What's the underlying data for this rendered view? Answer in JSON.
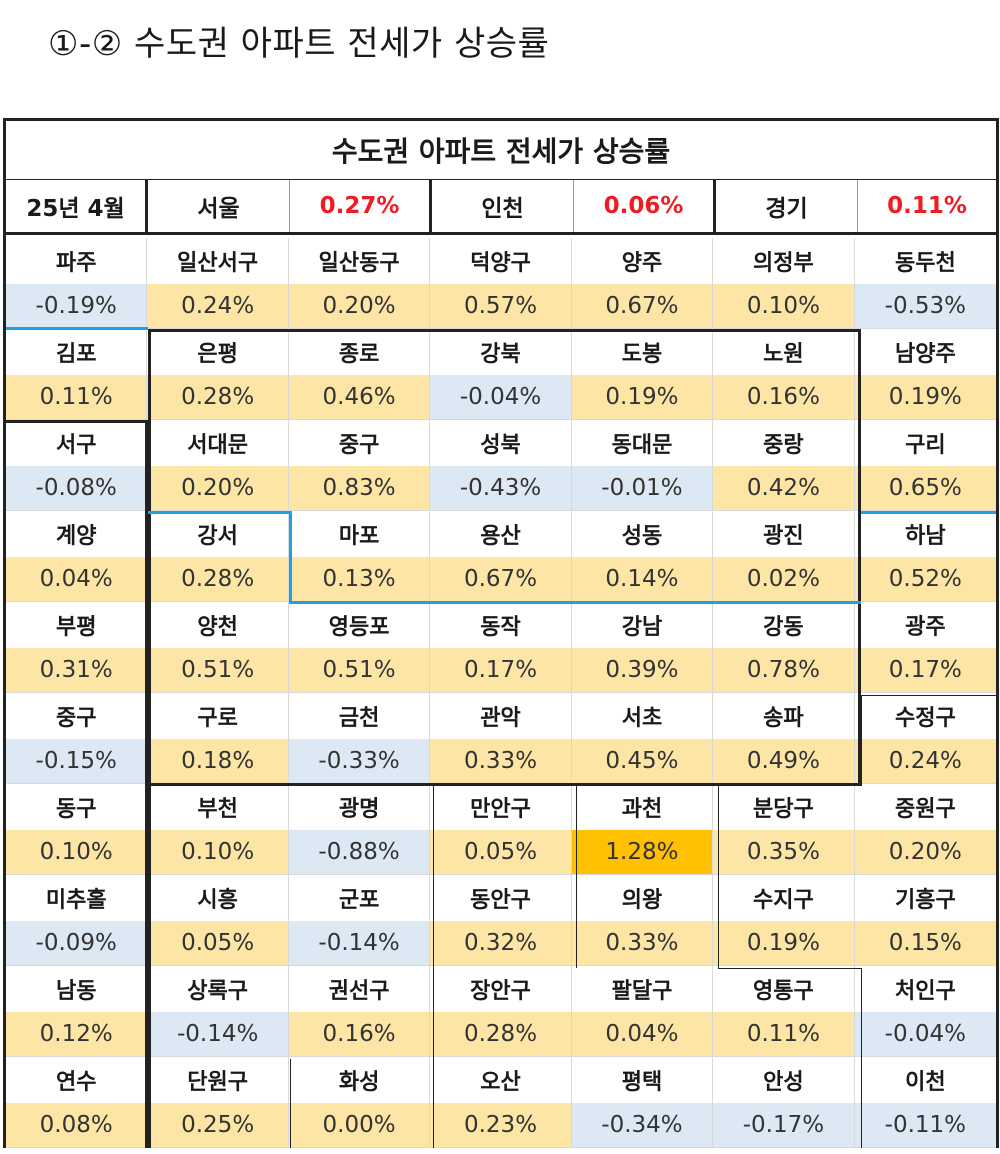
{
  "page": {
    "title": "①-② 수도권 아파트 전세가 상승률"
  },
  "table": {
    "title": "수도권 아파트 전세가 상승률",
    "summary": [
      {
        "text": "25년 4월",
        "kind": "label"
      },
      {
        "text": "서울",
        "kind": "label"
      },
      {
        "text": "0.27%",
        "kind": "value"
      },
      {
        "text": "인천",
        "kind": "label"
      },
      {
        "text": "0.06%",
        "kind": "value"
      },
      {
        "text": "경기",
        "kind": "label"
      },
      {
        "text": "0.11%",
        "kind": "value"
      }
    ],
    "rows": [
      [
        {
          "name": "파주",
          "value": "-0.19%"
        },
        {
          "name": "일산서구",
          "value": "0.24%"
        },
        {
          "name": "일산동구",
          "value": "0.20%"
        },
        {
          "name": "덕양구",
          "value": "0.57%"
        },
        {
          "name": "양주",
          "value": "0.67%"
        },
        {
          "name": "의정부",
          "value": "0.10%"
        },
        {
          "name": "동두천",
          "value": "-0.53%"
        }
      ],
      [
        {
          "name": "김포",
          "value": "0.11%"
        },
        {
          "name": "은평",
          "value": "0.28%"
        },
        {
          "name": "종로",
          "value": "0.46%"
        },
        {
          "name": "강북",
          "value": "-0.04%"
        },
        {
          "name": "도봉",
          "value": "0.19%"
        },
        {
          "name": "노원",
          "value": "0.16%"
        },
        {
          "name": "남양주",
          "value": "0.19%"
        }
      ],
      [
        {
          "name": "서구",
          "value": "-0.08%"
        },
        {
          "name": "서대문",
          "value": "0.20%"
        },
        {
          "name": "중구",
          "value": "0.83%"
        },
        {
          "name": "성북",
          "value": "-0.43%"
        },
        {
          "name": "동대문",
          "value": "-0.01%"
        },
        {
          "name": "중랑",
          "value": "0.42%"
        },
        {
          "name": "구리",
          "value": "0.65%"
        }
      ],
      [
        {
          "name": "계양",
          "value": "0.04%"
        },
        {
          "name": "강서",
          "value": "0.28%"
        },
        {
          "name": "마포",
          "value": "0.13%"
        },
        {
          "name": "용산",
          "value": "0.67%"
        },
        {
          "name": "성동",
          "value": "0.14%"
        },
        {
          "name": "광진",
          "value": "0.02%"
        },
        {
          "name": "하남",
          "value": "0.52%"
        }
      ],
      [
        {
          "name": "부평",
          "value": "0.31%"
        },
        {
          "name": "양천",
          "value": "0.51%"
        },
        {
          "name": "영등포",
          "value": "0.51%"
        },
        {
          "name": "동작",
          "value": "0.17%"
        },
        {
          "name": "강남",
          "value": "0.39%"
        },
        {
          "name": "강동",
          "value": "0.78%"
        },
        {
          "name": "광주",
          "value": "0.17%"
        }
      ],
      [
        {
          "name": "중구",
          "value": "-0.15%"
        },
        {
          "name": "구로",
          "value": "0.18%"
        },
        {
          "name": "금천",
          "value": "-0.33%"
        },
        {
          "name": "관악",
          "value": "0.33%"
        },
        {
          "name": "서초",
          "value": "0.45%"
        },
        {
          "name": "송파",
          "value": "0.49%"
        },
        {
          "name": "수정구",
          "value": "0.24%"
        }
      ],
      [
        {
          "name": "동구",
          "value": "0.10%"
        },
        {
          "name": "부천",
          "value": "0.10%"
        },
        {
          "name": "광명",
          "value": "-0.88%"
        },
        {
          "name": "만안구",
          "value": "0.05%"
        },
        {
          "name": "과천",
          "value": "1.28%",
          "hot": true
        },
        {
          "name": "분당구",
          "value": "0.35%"
        },
        {
          "name": "중원구",
          "value": "0.20%"
        }
      ],
      [
        {
          "name": "미추홀",
          "value": "-0.09%"
        },
        {
          "name": "시흥",
          "value": "0.05%"
        },
        {
          "name": "군포",
          "value": "-0.14%"
        },
        {
          "name": "동안구",
          "value": "0.32%"
        },
        {
          "name": "의왕",
          "value": "0.33%"
        },
        {
          "name": "수지구",
          "value": "0.19%"
        },
        {
          "name": "기흥구",
          "value": "0.15%"
        }
      ],
      [
        {
          "name": "남동",
          "value": "0.12%"
        },
        {
          "name": "상록구",
          "value": "-0.14%"
        },
        {
          "name": "권선구",
          "value": "0.16%"
        },
        {
          "name": "장안구",
          "value": "0.28%"
        },
        {
          "name": "팔달구",
          "value": "0.04%"
        },
        {
          "name": "영통구",
          "value": "0.11%"
        },
        {
          "name": "처인구",
          "value": "-0.04%"
        }
      ],
      [
        {
          "name": "연수",
          "value": "0.08%"
        },
        {
          "name": "단원구",
          "value": "0.25%"
        },
        {
          "name": "화성",
          "value": "0.00%"
        },
        {
          "name": "오산",
          "value": "0.23%"
        },
        {
          "name": "평택",
          "value": "-0.34%"
        },
        {
          "name": "안성",
          "value": "-0.17%"
        },
        {
          "name": "이천",
          "value": "-0.11%"
        }
      ]
    ]
  },
  "colors": {
    "up": "#fde5a6",
    "down": "#dce8f4",
    "hot": "#ffc000",
    "red": "#ee1c25",
    "divider_blue": "#1fa0e0"
  }
}
